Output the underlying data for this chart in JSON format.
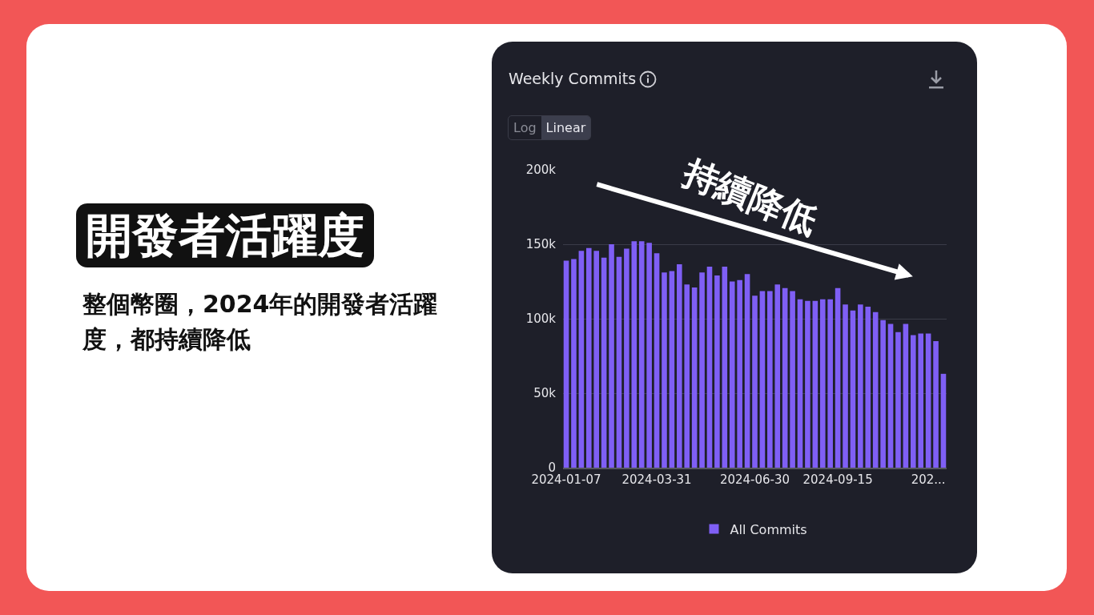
{
  "chart_data": {
    "type": "bar",
    "title": "Weekly Commits",
    "annotations": [
      "開發者活躍度",
      "整個幣圈，2024年的開發者活躍度，都持續降低",
      "Log",
      "Linear",
      "持續降低"
    ],
    "x": [
      "2024-01-07",
      "2024-01-14",
      "2024-01-21",
      "2024-01-28",
      "2024-02-04",
      "2024-02-11",
      "2024-02-18",
      "2024-02-25",
      "2024-03-03",
      "2024-03-10",
      "2024-03-17",
      "2024-03-24",
      "2024-03-31",
      "2024-04-07",
      "2024-04-14",
      "2024-04-21",
      "2024-04-28",
      "2024-05-05",
      "2024-05-12",
      "2024-05-19",
      "2024-05-26",
      "2024-06-02",
      "2024-06-09",
      "2024-06-16",
      "2024-06-23",
      "2024-06-30",
      "2024-07-07",
      "2024-07-14",
      "2024-07-21",
      "2024-07-28",
      "2024-08-04",
      "2024-08-11",
      "2024-08-18",
      "2024-08-25",
      "2024-09-01",
      "2024-09-08",
      "2024-09-15",
      "2024-09-22",
      "2024-09-29",
      "2024-10-06",
      "2024-10-13",
      "2024-10-20",
      "2024-10-27",
      "2024-11-03",
      "2024-11-10",
      "2024-11-17",
      "2024-11-24",
      "2024-12-01",
      "2024-12-08",
      "2024-12-15",
      "2024-12-22"
    ],
    "series": [
      {
        "name": "All Commits",
        "color": "#7f5ff5",
        "values": [
          139000,
          140000,
          145500,
          147500,
          145500,
          141000,
          150000,
          141500,
          147000,
          152000,
          152000,
          151000,
          144000,
          131000,
          132000,
          136500,
          123000,
          121000,
          131000,
          135000,
          129000,
          135000,
          125000,
          126000,
          130000,
          115500,
          118500,
          118500,
          123000,
          120500,
          118500,
          113000,
          112000,
          112000,
          113000,
          113000,
          120500,
          109500,
          105500,
          109500,
          108000,
          104500,
          99000,
          96500,
          91000,
          96500,
          89000,
          90000,
          90000,
          85000,
          63000
        ]
      }
    ],
    "xlim": [
      "2024-01-04",
      "2024-12-25"
    ],
    "xticks": [
      "2024-01-07",
      "2024-03-31",
      "2024-06-30",
      "2024-09-15",
      {
        "value": "2024-12-08",
        "label": "202..."
      }
    ],
    "ylim": [
      0,
      200000
    ],
    "yticks": [
      0,
      {
        "value": 50000,
        "label": "50k"
      },
      {
        "value": 100000,
        "label": "100k"
      },
      {
        "value": 150000,
        "label": "150k"
      },
      {
        "value": 200000,
        "label": "200k"
      }
    ],
    "grid": "y",
    "legend": "bottom"
  }
}
